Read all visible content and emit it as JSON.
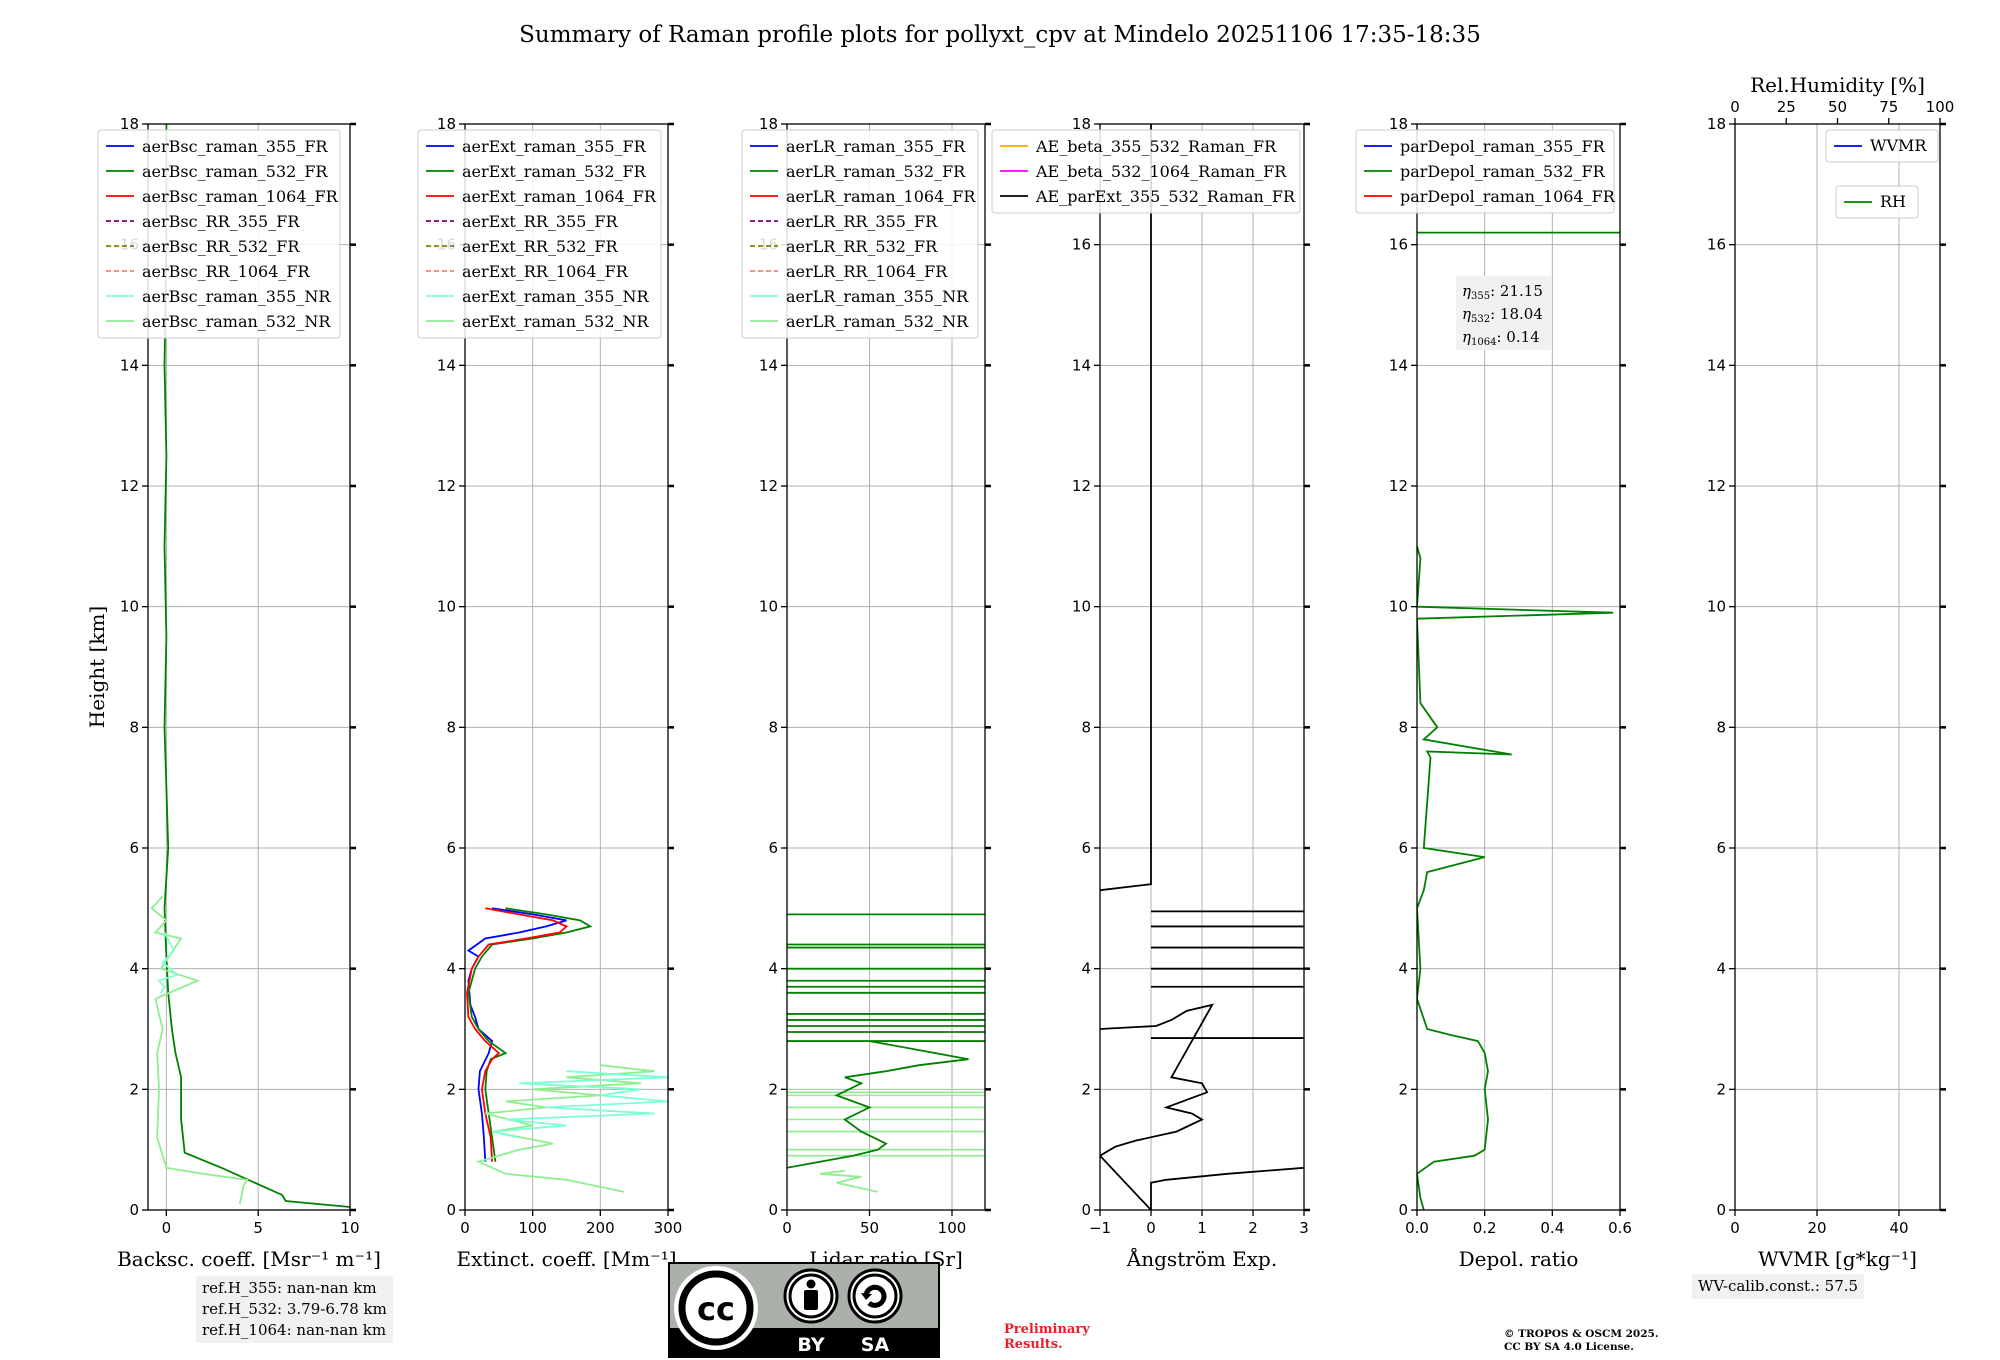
{
  "title": "Summary of Raman profile plots for pollyxt_cpv at Mindelo 20251106 17:35-18:35",
  "chart_data": [
    {
      "type": "line",
      "panel": "backscatter",
      "xlabel": "Backsc. coeff. [Msr⁻¹ m⁻¹]",
      "ylabel": "Height [km]",
      "xlim": [
        -1,
        10
      ],
      "ylim": [
        0,
        18
      ],
      "xticks": [
        0,
        5,
        10
      ],
      "yticks": [
        0,
        2,
        4,
        6,
        8,
        10,
        12,
        14,
        16,
        18
      ],
      "legend": [
        "aerBsc_raman_355_FR",
        "aerBsc_raman_532_FR",
        "aerBsc_raman_1064_FR",
        "aerBsc_RR_355_FR",
        "aerBsc_RR_532_FR",
        "aerBsc_RR_1064_FR",
        "aerBsc_raman_355_NR",
        "aerBsc_raman_532_NR"
      ],
      "series": [
        {
          "name": "aerBsc_raman_532_FR",
          "color": "#008000",
          "x": [
            10,
            6.5,
            6.3,
            5.2,
            3.0,
            1.0,
            0.8,
            0.8,
            0.5,
            0.3,
            0.1,
            0.0,
            -0.1,
            0.1,
            0.0,
            -0.1,
            0.0,
            -0.1,
            0.0,
            -0.1,
            0.0,
            0.0
          ],
          "y": [
            0.05,
            0.15,
            0.25,
            0.4,
            0.7,
            0.95,
            1.5,
            2.2,
            2.6,
            3.0,
            3.6,
            4.2,
            5.0,
            6.0,
            7.0,
            8.0,
            9.5,
            11.0,
            12.5,
            14.0,
            16.0,
            18.0
          ]
        },
        {
          "name": "aerBsc_raman_532_NR",
          "color": "#90ee90",
          "x": [
            4.0,
            4.2,
            4.4,
            2.0,
            0.0,
            -0.5,
            -0.4,
            -0.5,
            -0.2,
            -0.6,
            1.7,
            -0.3,
            0.8,
            -0.6,
            0.0,
            -0.8,
            -0.2
          ],
          "y": [
            0.1,
            0.4,
            0.5,
            0.6,
            0.7,
            1.2,
            2.0,
            2.6,
            3.0,
            3.5,
            3.8,
            4.0,
            4.5,
            4.6,
            4.8,
            5.0,
            5.2
          ]
        },
        {
          "name": "aerBsc_raman_355_NR",
          "color": "#7fffd4",
          "x": [
            -0.3,
            -0.1,
            -0.4,
            0.6,
            -0.2,
            0.4,
            -0.1
          ],
          "y": [
            3.6,
            3.7,
            3.8,
            3.9,
            4.1,
            4.3,
            4.6
          ]
        }
      ],
      "annotation": [
        "ref.H_355: nan-nan km",
        "ref.H_532: 3.79-6.78 km",
        "ref.H_1064: nan-nan km"
      ]
    },
    {
      "type": "line",
      "panel": "extinction",
      "xlabel": "Extinct. coeff. [Mm⁻¹]",
      "xlim": [
        0,
        300
      ],
      "ylim": [
        0,
        18
      ],
      "xticks": [
        0,
        100,
        200,
        300
      ],
      "legend": [
        "aerExt_raman_355_FR",
        "aerExt_raman_532_FR",
        "aerExt_raman_1064_FR",
        "aerExt_RR_355_FR",
        "aerExt_RR_532_FR",
        "aerExt_RR_1064_FR",
        "aerExt_raman_355_NR",
        "aerExt_raman_532_NR"
      ],
      "series": [
        {
          "name": "aerExt_raman_355_FR",
          "color": "#0000ff",
          "x": [
            30,
            28,
            25,
            20,
            22,
            35,
            40,
            20,
            15,
            8,
            5,
            10,
            20,
            5,
            30,
            80,
            120,
            150,
            100,
            40
          ],
          "y": [
            0.8,
            1.2,
            1.6,
            2.0,
            2.3,
            2.6,
            2.8,
            3.0,
            3.2,
            3.4,
            3.8,
            4.0,
            4.2,
            4.3,
            4.5,
            4.6,
            4.7,
            4.8,
            4.9,
            5.0
          ]
        },
        {
          "name": "aerExt_raman_532_FR",
          "color": "#008000",
          "x": [
            45,
            40,
            35,
            30,
            32,
            38,
            60,
            35,
            20,
            10,
            5,
            15,
            25,
            40,
            100,
            150,
            185,
            170,
            120,
            60
          ],
          "y": [
            0.8,
            1.2,
            1.6,
            2.0,
            2.3,
            2.5,
            2.6,
            2.8,
            3.0,
            3.2,
            3.6,
            4.0,
            4.2,
            4.4,
            4.5,
            4.6,
            4.7,
            4.8,
            4.9,
            5.0
          ]
        },
        {
          "name": "aerExt_raman_1064_FR",
          "color": "#ff0000",
          "x": [
            40,
            38,
            30,
            25,
            30,
            40,
            50,
            30,
            15,
            5,
            3,
            10,
            20,
            35,
            90,
            140,
            150,
            130,
            80,
            30
          ],
          "y": [
            0.8,
            1.2,
            1.6,
            2.0,
            2.3,
            2.5,
            2.6,
            2.8,
            3.0,
            3.2,
            3.6,
            4.0,
            4.2,
            4.4,
            4.5,
            4.6,
            4.7,
            4.8,
            4.9,
            5.0
          ]
        },
        {
          "name": "aerExt_raman_532_NR",
          "color": "#90ee90",
          "x": [
            235,
            150,
            60,
            20,
            80,
            130,
            40,
            100,
            30,
            120,
            60,
            200,
            100,
            260,
            150,
            280,
            200
          ],
          "y": [
            0.3,
            0.5,
            0.6,
            0.8,
            1.0,
            1.1,
            1.3,
            1.4,
            1.6,
            1.7,
            1.8,
            1.9,
            2.0,
            2.1,
            2.2,
            2.3,
            2.4
          ]
        },
        {
          "name": "aerExt_raman_355_NR",
          "color": "#7fffd4",
          "x": [
            80,
            40,
            150,
            60,
            280,
            120,
            300,
            200,
            260,
            80,
            300,
            150
          ],
          "y": [
            1.2,
            1.3,
            1.4,
            1.5,
            1.6,
            1.7,
            1.8,
            1.9,
            2.0,
            2.1,
            2.2,
            2.3
          ]
        }
      ]
    },
    {
      "type": "line",
      "panel": "lidar_ratio",
      "xlabel": "Lidar ratio [Sr]",
      "xlim": [
        0,
        120
      ],
      "ylim": [
        0,
        18
      ],
      "xticks": [
        0,
        50,
        100
      ],
      "legend": [
        "aerLR_raman_355_FR",
        "aerLR_raman_532_FR",
        "aerLR_raman_1064_FR",
        "aerLR_RR_355_FR",
        "aerLR_RR_532_FR",
        "aerLR_RR_1064_FR",
        "aerLR_raman_355_NR",
        "aerLR_raman_532_NR"
      ],
      "series": [
        {
          "name": "aerLR_raman_532_FR",
          "color": "#008000",
          "x": [
            0,
            20,
            40,
            55,
            60,
            45,
            35,
            50,
            30,
            45,
            35,
            60,
            80,
            110,
            90,
            50
          ],
          "y": [
            0.7,
            0.8,
            0.9,
            1.0,
            1.1,
            1.3,
            1.5,
            1.7,
            1.9,
            2.1,
            2.2,
            2.3,
            2.4,
            2.5,
            2.6,
            2.8
          ]
        },
        {
          "name": "aerLR_raman_532_NR",
          "color": "#90ee90",
          "x": [
            55,
            30,
            45,
            20,
            35
          ],
          "y": [
            0.3,
            0.45,
            0.55,
            0.6,
            0.65
          ]
        }
      ],
      "hlines_532_FR": [
        2.8,
        2.95,
        3.05,
        3.15,
        3.25,
        3.6,
        3.7,
        3.8,
        4.0,
        4.35,
        4.4,
        4.9
      ],
      "hlines_532_NR": [
        0.9,
        1.0,
        1.3,
        1.5,
        1.7,
        1.9,
        1.95
      ]
    },
    {
      "type": "line",
      "panel": "angstrom",
      "xlabel": "Ångström Exp.",
      "xlim": [
        -1,
        3
      ],
      "ylim": [
        0,
        18
      ],
      "xticks": [
        -1,
        0,
        1,
        2,
        3
      ],
      "legend": [
        "AE_beta_355_532_Raman_FR",
        "AE_beta_532_1064_Raman_FR",
        "AE_parExt_355_532_Raman_FR"
      ],
      "series": [
        {
          "name": "AE_parExt_355_532_Raman_FR",
          "color": "#000000",
          "x": [
            3,
            1.5,
            0.3,
            0,
            0,
            -1,
            -0.7,
            -0.3,
            0.5,
            1.0,
            0.8,
            0.3,
            1.1,
            1.0,
            0.4,
            1.2,
            0.7,
            0.4,
            0.1,
            -1
          ],
          "y": [
            0.7,
            0.6,
            0.5,
            0.45,
            0.0,
            0.9,
            1.05,
            1.15,
            1.3,
            1.5,
            1.6,
            1.7,
            1.95,
            2.1,
            2.2,
            3.4,
            3.3,
            3.15,
            3.05,
            3.0
          ]
        },
        {
          "name": "AE_parExt_355_532_Raman_FR (upper)",
          "color": "#000000",
          "x": [
            -1,
            0,
            0,
            0
          ],
          "y": [
            5.3,
            5.4,
            10.0,
            18.0
          ]
        }
      ],
      "hlines": [
        2.85,
        3.7,
        4.0,
        4.35,
        4.7,
        4.95
      ]
    },
    {
      "type": "line",
      "panel": "depolarization",
      "xlabel": "Depol. ratio",
      "xlim": [
        0,
        0.6
      ],
      "ylim": [
        0,
        18
      ],
      "xticks": [
        0.0,
        0.2,
        0.4,
        0.6
      ],
      "legend": [
        "parDepol_raman_355_FR",
        "parDepol_raman_532_FR",
        "parDepol_raman_1064_FR"
      ],
      "annotation": [
        "21.15",
        "18.04",
        "0.14"
      ],
      "annotation_labels": [
        "355",
        "532",
        "1064"
      ],
      "series": [
        {
          "name": "parDepol_raman_532_FR",
          "color": "#008000",
          "x": [
            0.02,
            0.01,
            0.0,
            0.05,
            0.17,
            0.2,
            0.21,
            0.2,
            0.21,
            0.2,
            0.18,
            0.1,
            0.03,
            0.0,
            0.01,
            0.0,
            0.02,
            0.03,
            0.2,
            0.02,
            0.04,
            0.03,
            0.28,
            0.02,
            0.06,
            0.01,
            0.0,
            0.58,
            0.0,
            0.01,
            0.0
          ],
          "y": [
            0.0,
            0.2,
            0.6,
            0.8,
            0.9,
            1.0,
            1.5,
            2.0,
            2.3,
            2.6,
            2.8,
            2.9,
            3.0,
            3.5,
            4.0,
            5.0,
            5.3,
            5.6,
            5.85,
            6.0,
            7.5,
            7.6,
            7.55,
            7.8,
            8.0,
            8.4,
            9.8,
            9.9,
            10.0,
            10.8,
            11.0
          ]
        }
      ],
      "hlines": [
        16.2
      ]
    },
    {
      "type": "line",
      "panel": "water_vapor",
      "xlabel": "WVMR [g*kg⁻¹]",
      "top_xlabel": "Rel.Humidity [%]",
      "xlim": [
        0,
        50
      ],
      "ylim": [
        0,
        18
      ],
      "xticks": [
        0,
        20,
        40
      ],
      "top_xticks": [
        0,
        25,
        50,
        75,
        100
      ],
      "legend": [
        "WVMR",
        "RH"
      ],
      "series": [],
      "annotation": "WV-calib.const.: 57.5"
    }
  ],
  "footer": {
    "preliminary": [
      "Preliminary",
      "Results."
    ],
    "copyright": [
      "© TROPOS & OSCM 2025.",
      "CC BY SA 4.0 License."
    ],
    "cc_by": "BY",
    "cc_sa": "SA",
    "cc": "cc"
  }
}
